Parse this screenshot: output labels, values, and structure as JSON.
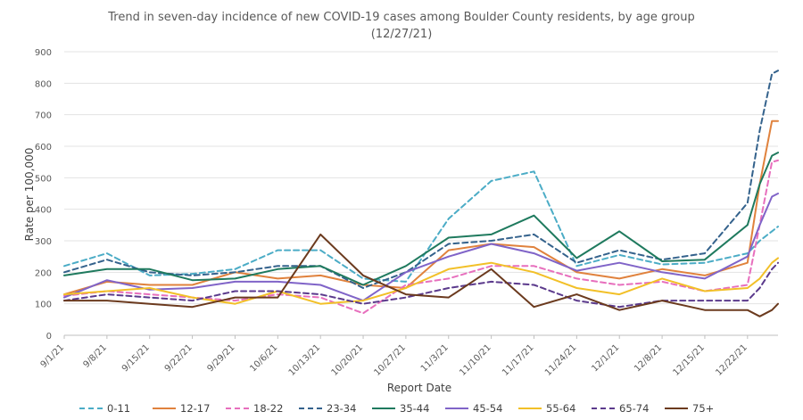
{
  "chart_data": {
    "type": "line",
    "title": "Trend in seven-day incidence of new COVID-19 cases among Boulder County residents, by age group",
    "subtitle": "(12/27/21)",
    "xlabel": "Report Date",
    "ylabel": "Rate per 100,000",
    "ylim": [
      0,
      900
    ],
    "yticks": [
      0,
      100,
      200,
      300,
      400,
      500,
      600,
      700,
      800,
      900
    ],
    "x_range": [
      "9/1/21",
      "12/27/21"
    ],
    "xticks": [
      "9/1/21",
      "9/8/21",
      "9/15/21",
      "9/22/21",
      "9/29/21",
      "10/6/21",
      "10/13/21",
      "10/20/21",
      "10/27/21",
      "11/3/21",
      "11/10/21",
      "11/17/21",
      "11/24/21",
      "12/1/21",
      "12/8/21",
      "12/15/21",
      "12/22/21"
    ],
    "grid": true,
    "legend_position": "bottom",
    "x": [
      "9/1/21",
      "9/8/21",
      "9/15/21",
      "9/22/21",
      "9/29/21",
      "10/6/21",
      "10/13/21",
      "10/20/21",
      "10/27/21",
      "11/3/21",
      "11/10/21",
      "11/17/21",
      "11/24/21",
      "12/1/21",
      "12/8/21",
      "12/15/21",
      "12/22/21",
      "12/24/21",
      "12/26/21",
      "12/27/21"
    ],
    "series": [
      {
        "name": "0-11",
        "color": "#4bacc6",
        "dash": "dash",
        "values": [
          220,
          260,
          190,
          195,
          210,
          270,
          270,
          180,
          170,
          370,
          490,
          520,
          220,
          255,
          225,
          230,
          260,
          300,
          330,
          345
        ]
      },
      {
        "name": "12-17",
        "color": "#e0823d",
        "dash": "solid",
        "values": [
          130,
          170,
          160,
          160,
          200,
          180,
          190,
          160,
          150,
          270,
          290,
          280,
          200,
          180,
          210,
          190,
          230,
          480,
          680,
          680
        ]
      },
      {
        "name": "18-22",
        "color": "#e76fbd",
        "dash": "dash",
        "values": [
          125,
          140,
          130,
          120,
          110,
          130,
          120,
          70,
          160,
          180,
          220,
          220,
          180,
          160,
          170,
          140,
          160,
          350,
          550,
          555
        ]
      },
      {
        "name": "23-34",
        "color": "#34628c",
        "dash": "dash",
        "values": [
          200,
          240,
          200,
          190,
          200,
          220,
          220,
          150,
          200,
          290,
          300,
          320,
          230,
          270,
          240,
          260,
          420,
          650,
          830,
          840
        ]
      },
      {
        "name": "35-44",
        "color": "#1f7a5e",
        "dash": "solid",
        "values": [
          190,
          210,
          210,
          175,
          180,
          210,
          220,
          160,
          220,
          310,
          320,
          380,
          245,
          330,
          235,
          240,
          350,
          480,
          570,
          580
        ]
      },
      {
        "name": "45-54",
        "color": "#8064c8",
        "dash": "solid",
        "values": [
          120,
          175,
          145,
          150,
          170,
          170,
          160,
          110,
          200,
          250,
          290,
          260,
          205,
          230,
          200,
          180,
          250,
          350,
          440,
          450
        ]
      },
      {
        "name": "55-64",
        "color": "#f2c028",
        "dash": "solid",
        "values": [
          130,
          140,
          150,
          120,
          100,
          140,
          100,
          110,
          150,
          210,
          230,
          200,
          150,
          130,
          180,
          140,
          150,
          180,
          230,
          245
        ]
      },
      {
        "name": "65-74",
        "color": "#5b3a8c",
        "dash": "dash",
        "values": [
          110,
          130,
          120,
          110,
          140,
          140,
          130,
          100,
          120,
          150,
          170,
          160,
          110,
          90,
          110,
          110,
          110,
          150,
          210,
          230
        ]
      },
      {
        "name": "75+",
        "color": "#6b3a1e",
        "dash": "solid",
        "values": [
          110,
          110,
          100,
          90,
          120,
          120,
          320,
          190,
          130,
          120,
          210,
          90,
          130,
          80,
          110,
          80,
          80,
          60,
          80,
          100
        ]
      }
    ]
  }
}
